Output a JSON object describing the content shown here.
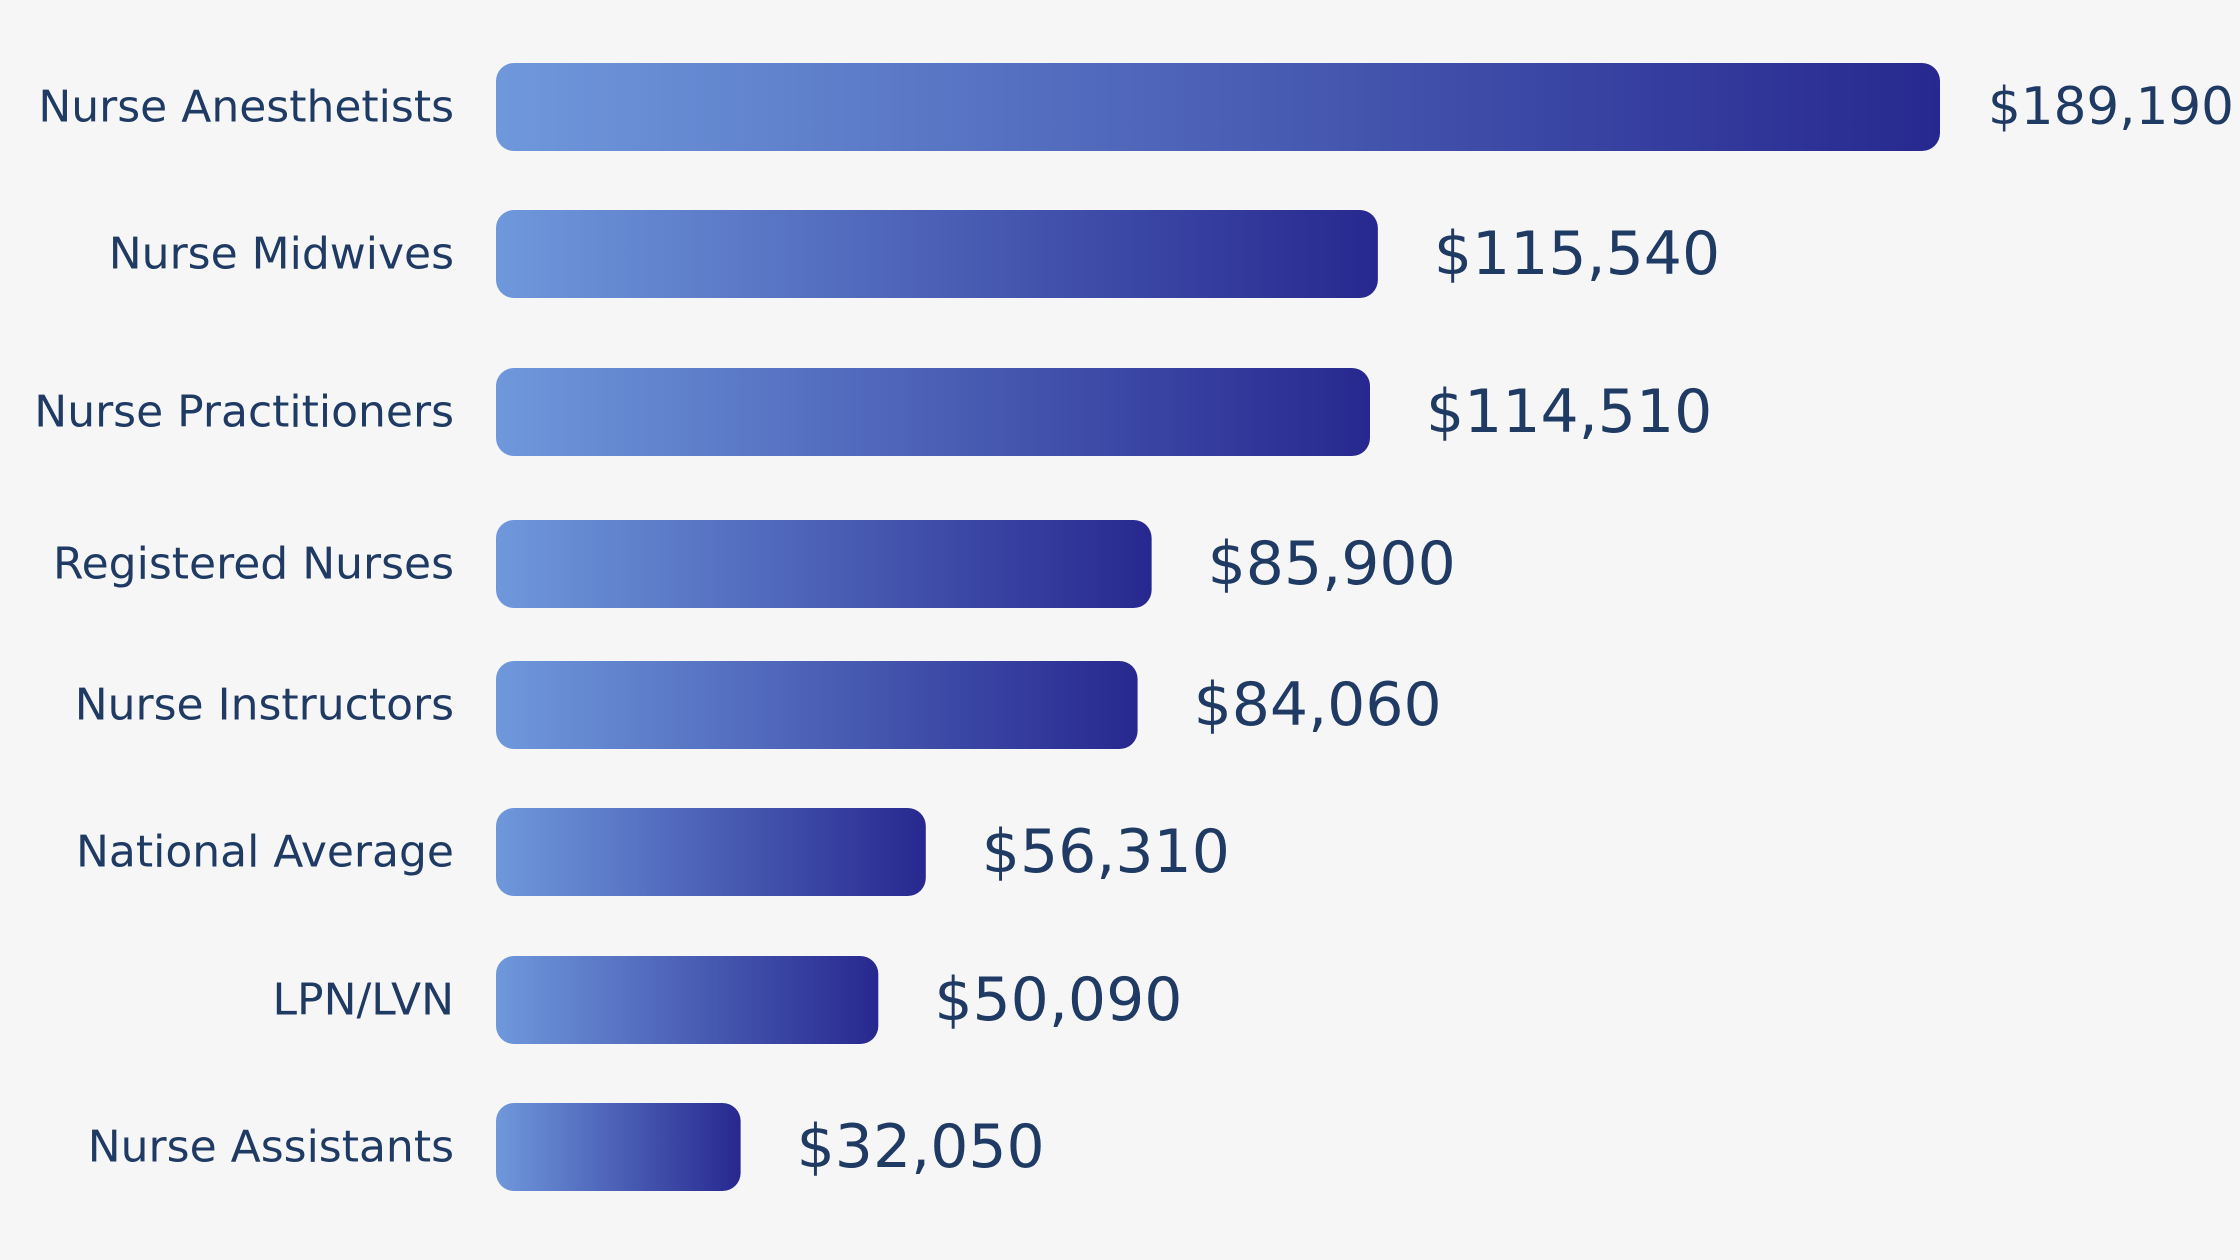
{
  "chart_data": {
    "type": "bar",
    "orientation": "horizontal",
    "categories": [
      "Nurse Anesthetists",
      "Nurse Midwives",
      "Nurse Practitioners",
      "Registered Nurses",
      "Nurse Instructors",
      "National Average",
      "LPN/LVN",
      "Nurse Assistants"
    ],
    "values": [
      189190,
      115540,
      114510,
      85900,
      84060,
      56310,
      50090,
      32050
    ],
    "value_labels": [
      "$189,190",
      "$115,540",
      "$114,510",
      "$85,900",
      "$84,060",
      "$56,310",
      "$50,090",
      "$32,050"
    ],
    "title": "",
    "xlabel": "",
    "ylabel": "",
    "xlim": [
      0,
      189190
    ],
    "grid": false,
    "legend": "none",
    "colors": {
      "bar_gradient_start": "#6f98dc",
      "bar_gradient_end": "#27288f",
      "text": "#1f3a63",
      "background": "#f6f6f7"
    }
  }
}
